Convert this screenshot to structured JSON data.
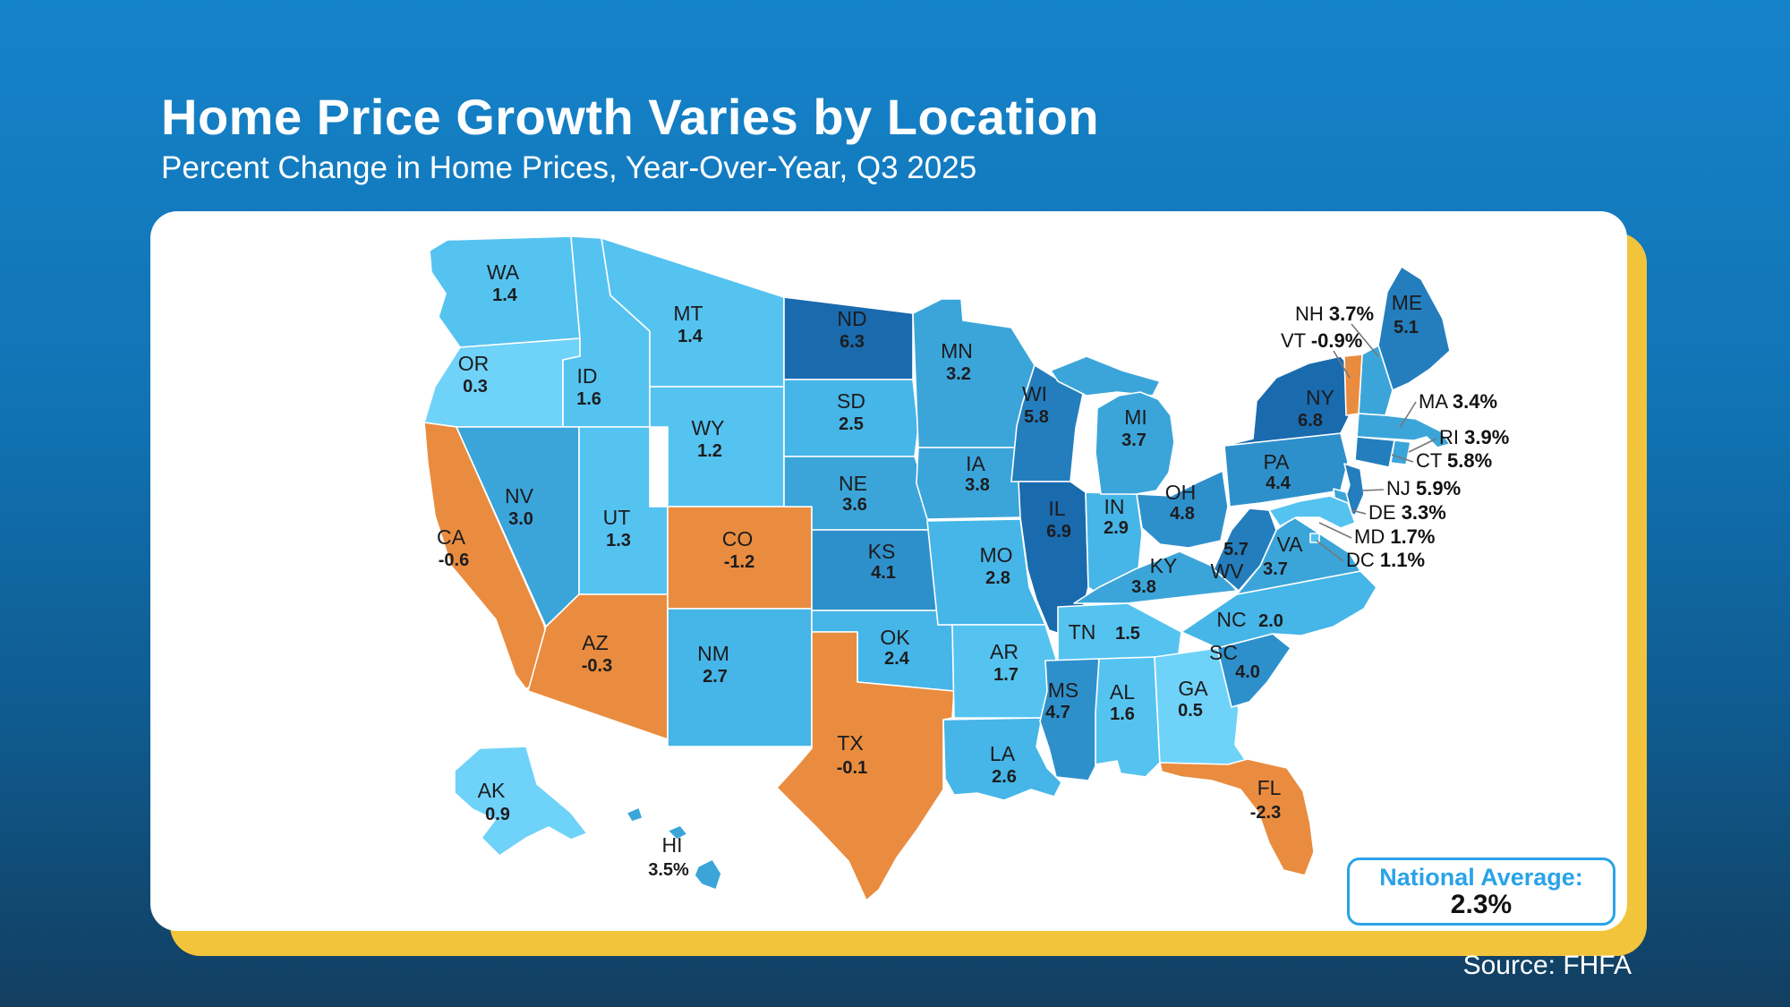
{
  "header": {
    "title": "Home Price Growth Varies by Location",
    "subtitle": "Percent Change in Home Prices, Year-Over-Year, Q3 2025"
  },
  "source": "Source: FHFA",
  "national_average": {
    "label": "National Average:",
    "value": "2.3%"
  },
  "theme": {
    "background_top": "#1583CA",
    "background_bottom": "#123E60",
    "card": "#FFFFFF",
    "gold_accent": "#F2C43C",
    "accent_blue": "#29A3E8",
    "label_text": "#1C1C1E"
  },
  "chart_data": {
    "type": "choropleth",
    "title": "Home Price Growth Varies by Location",
    "subtitle": "Percent Change in Home Prices, Year-Over-Year, Q3 2025",
    "unit": "percent change year-over-year",
    "national_average": 2.3,
    "palette": {
      "negative": "#E98C3F",
      "t0": "#6FD2F8",
      "t1": "#55C3F0",
      "t2": "#46B5E7",
      "t3": "#3BA5DA",
      "t4": "#2E90CB",
      "t5": "#247EBD",
      "t6": "#1A6AAE"
    },
    "states": [
      {
        "abbr": "WA",
        "value": 1.4,
        "display": "1.4"
      },
      {
        "abbr": "OR",
        "value": 0.3,
        "display": "0.3"
      },
      {
        "abbr": "CA",
        "value": -0.6,
        "display": "-0.6"
      },
      {
        "abbr": "ID",
        "value": 1.6,
        "display": "1.6"
      },
      {
        "abbr": "NV",
        "value": 3.0,
        "display": "3.0"
      },
      {
        "abbr": "UT",
        "value": 1.3,
        "display": "1.3"
      },
      {
        "abbr": "AZ",
        "value": -0.3,
        "display": "-0.3"
      },
      {
        "abbr": "MT",
        "value": 1.4,
        "display": "1.4"
      },
      {
        "abbr": "WY",
        "value": 1.2,
        "display": "1.2"
      },
      {
        "abbr": "CO",
        "value": -1.2,
        "display": "-1.2"
      },
      {
        "abbr": "NM",
        "value": 2.7,
        "display": "2.7"
      },
      {
        "abbr": "ND",
        "value": 6.3,
        "display": "6.3"
      },
      {
        "abbr": "SD",
        "value": 2.5,
        "display": "2.5"
      },
      {
        "abbr": "NE",
        "value": 3.6,
        "display": "3.6"
      },
      {
        "abbr": "KS",
        "value": 4.1,
        "display": "4.1"
      },
      {
        "abbr": "OK",
        "value": 2.4,
        "display": "2.4"
      },
      {
        "abbr": "TX",
        "value": -0.1,
        "display": "-0.1"
      },
      {
        "abbr": "MN",
        "value": 3.2,
        "display": "3.2"
      },
      {
        "abbr": "IA",
        "value": 3.8,
        "display": "3.8"
      },
      {
        "abbr": "MO",
        "value": 2.8,
        "display": "2.8"
      },
      {
        "abbr": "AR",
        "value": 1.7,
        "display": "1.7"
      },
      {
        "abbr": "LA",
        "value": 2.6,
        "display": "2.6"
      },
      {
        "abbr": "WI",
        "value": 5.8,
        "display": "5.8"
      },
      {
        "abbr": "IL",
        "value": 6.9,
        "display": "6.9"
      },
      {
        "abbr": "IN",
        "value": 2.9,
        "display": "2.9"
      },
      {
        "abbr": "MI",
        "value": 3.7,
        "display": "3.7"
      },
      {
        "abbr": "OH",
        "value": 4.8,
        "display": "4.8"
      },
      {
        "abbr": "KY",
        "value": 3.8,
        "display": "3.8"
      },
      {
        "abbr": "TN",
        "value": 1.5,
        "display": "1.5"
      },
      {
        "abbr": "MS",
        "value": 4.7,
        "display": "4.7"
      },
      {
        "abbr": "AL",
        "value": 1.6,
        "display": "1.6"
      },
      {
        "abbr": "GA",
        "value": 0.5,
        "display": "0.5"
      },
      {
        "abbr": "FL",
        "value": -2.3,
        "display": "-2.3"
      },
      {
        "abbr": "SC",
        "value": 4.0,
        "display": "4.0"
      },
      {
        "abbr": "NC",
        "value": 2.0,
        "display": "2.0"
      },
      {
        "abbr": "VA",
        "value": 3.7,
        "display": "3.7"
      },
      {
        "abbr": "WV",
        "value": 5.7,
        "display": "5.7"
      },
      {
        "abbr": "PA",
        "value": 4.4,
        "display": "4.4"
      },
      {
        "abbr": "NY",
        "value": 6.8,
        "display": "6.8"
      },
      {
        "abbr": "ME",
        "value": 5.1,
        "display": "5.1"
      },
      {
        "abbr": "AK",
        "value": 0.9,
        "display": "0.9"
      },
      {
        "abbr": "HI",
        "value": 3.5,
        "display": "3.5%"
      },
      {
        "abbr": "NH",
        "value": 3.7,
        "display": "3.7%",
        "callout": true
      },
      {
        "abbr": "VT",
        "value": -0.9,
        "display": "-0.9%",
        "callout": true
      },
      {
        "abbr": "MA",
        "value": 3.4,
        "display": "3.4%",
        "callout": true
      },
      {
        "abbr": "RI",
        "value": 3.9,
        "display": "3.9%",
        "callout": true
      },
      {
        "abbr": "CT",
        "value": 5.8,
        "display": "5.8%",
        "callout": true
      },
      {
        "abbr": "NJ",
        "value": 5.9,
        "display": "5.9%",
        "callout": true
      },
      {
        "abbr": "DE",
        "value": 3.3,
        "display": "3.3%",
        "callout": true
      },
      {
        "abbr": "MD",
        "value": 1.7,
        "display": "1.7%",
        "callout": true
      },
      {
        "abbr": "DC",
        "value": 1.1,
        "display": "1.1%",
        "callout": true
      }
    ]
  }
}
